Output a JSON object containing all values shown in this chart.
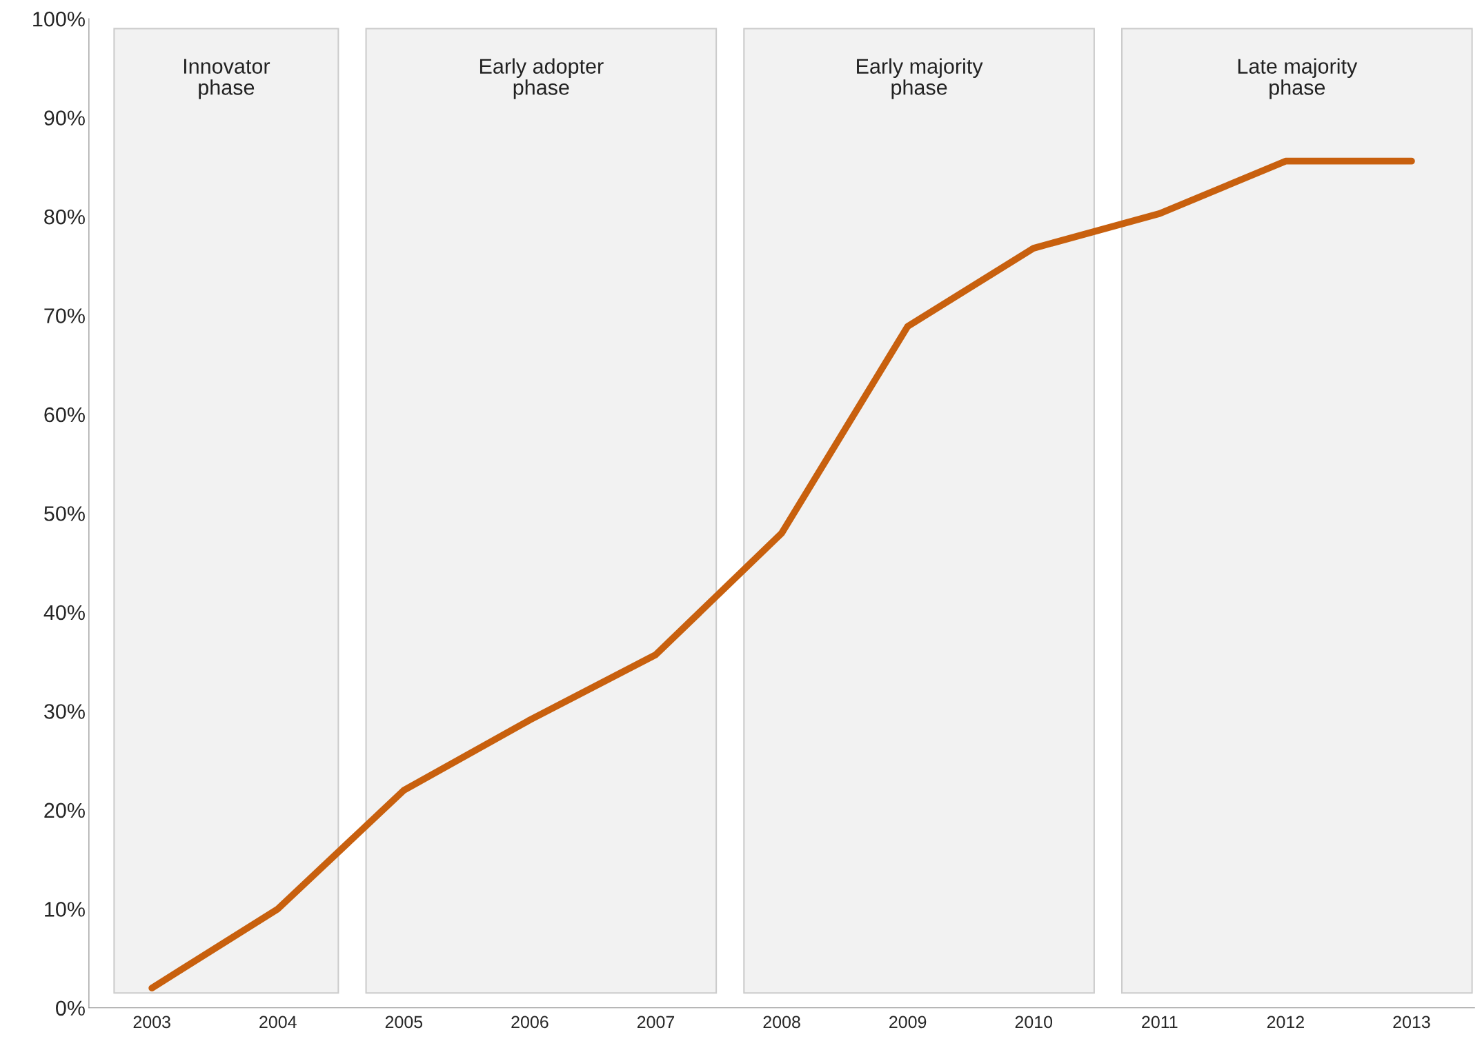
{
  "chart_data": {
    "type": "line",
    "categories": [
      "2003",
      "2004",
      "2005",
      "2006",
      "2007",
      "2008",
      "2009",
      "2010",
      "2011",
      "2012",
      "2013"
    ],
    "series": [
      {
        "color": "#c8600e",
        "values": [
          2.0,
          10.0,
          22.0,
          29.1,
          35.7,
          48.0,
          68.9,
          76.8,
          80.3,
          85.6,
          85.6
        ]
      }
    ],
    "ylim": [
      0,
      100
    ],
    "yticks": [
      {
        "value": 0,
        "label": "0%"
      },
      {
        "value": 10,
        "label": "10%"
      },
      {
        "value": 20,
        "label": "20%"
      },
      {
        "value": 30,
        "label": "30%"
      },
      {
        "value": 40,
        "label": "40%"
      },
      {
        "value": 50,
        "label": "50%"
      },
      {
        "value": 60,
        "label": "60%"
      },
      {
        "value": 70,
        "label": "70%"
      },
      {
        "value": 80,
        "label": "80%"
      },
      {
        "value": 90,
        "label": "90%"
      },
      {
        "value": 100,
        "label": "100%"
      }
    ],
    "bands": [
      {
        "axis": "x",
        "from": "2003",
        "to": "2004",
        "label": "Innovator\nphase",
        "color": "#f2f2f2"
      },
      {
        "axis": "x",
        "from": "2005",
        "to": "2007",
        "label": "Early adopter\nphase",
        "color": "#f2f2f2"
      },
      {
        "axis": "x",
        "from": "2008",
        "to": "2010",
        "label": "Early majority\nphase",
        "color": "#f2f2f2"
      },
      {
        "axis": "x",
        "from": "2011",
        "to": "2013",
        "label": "Late majority\nphase",
        "color": "#f2f2f2"
      }
    ],
    "grid": false,
    "marker": "none",
    "line_style": "solid"
  }
}
